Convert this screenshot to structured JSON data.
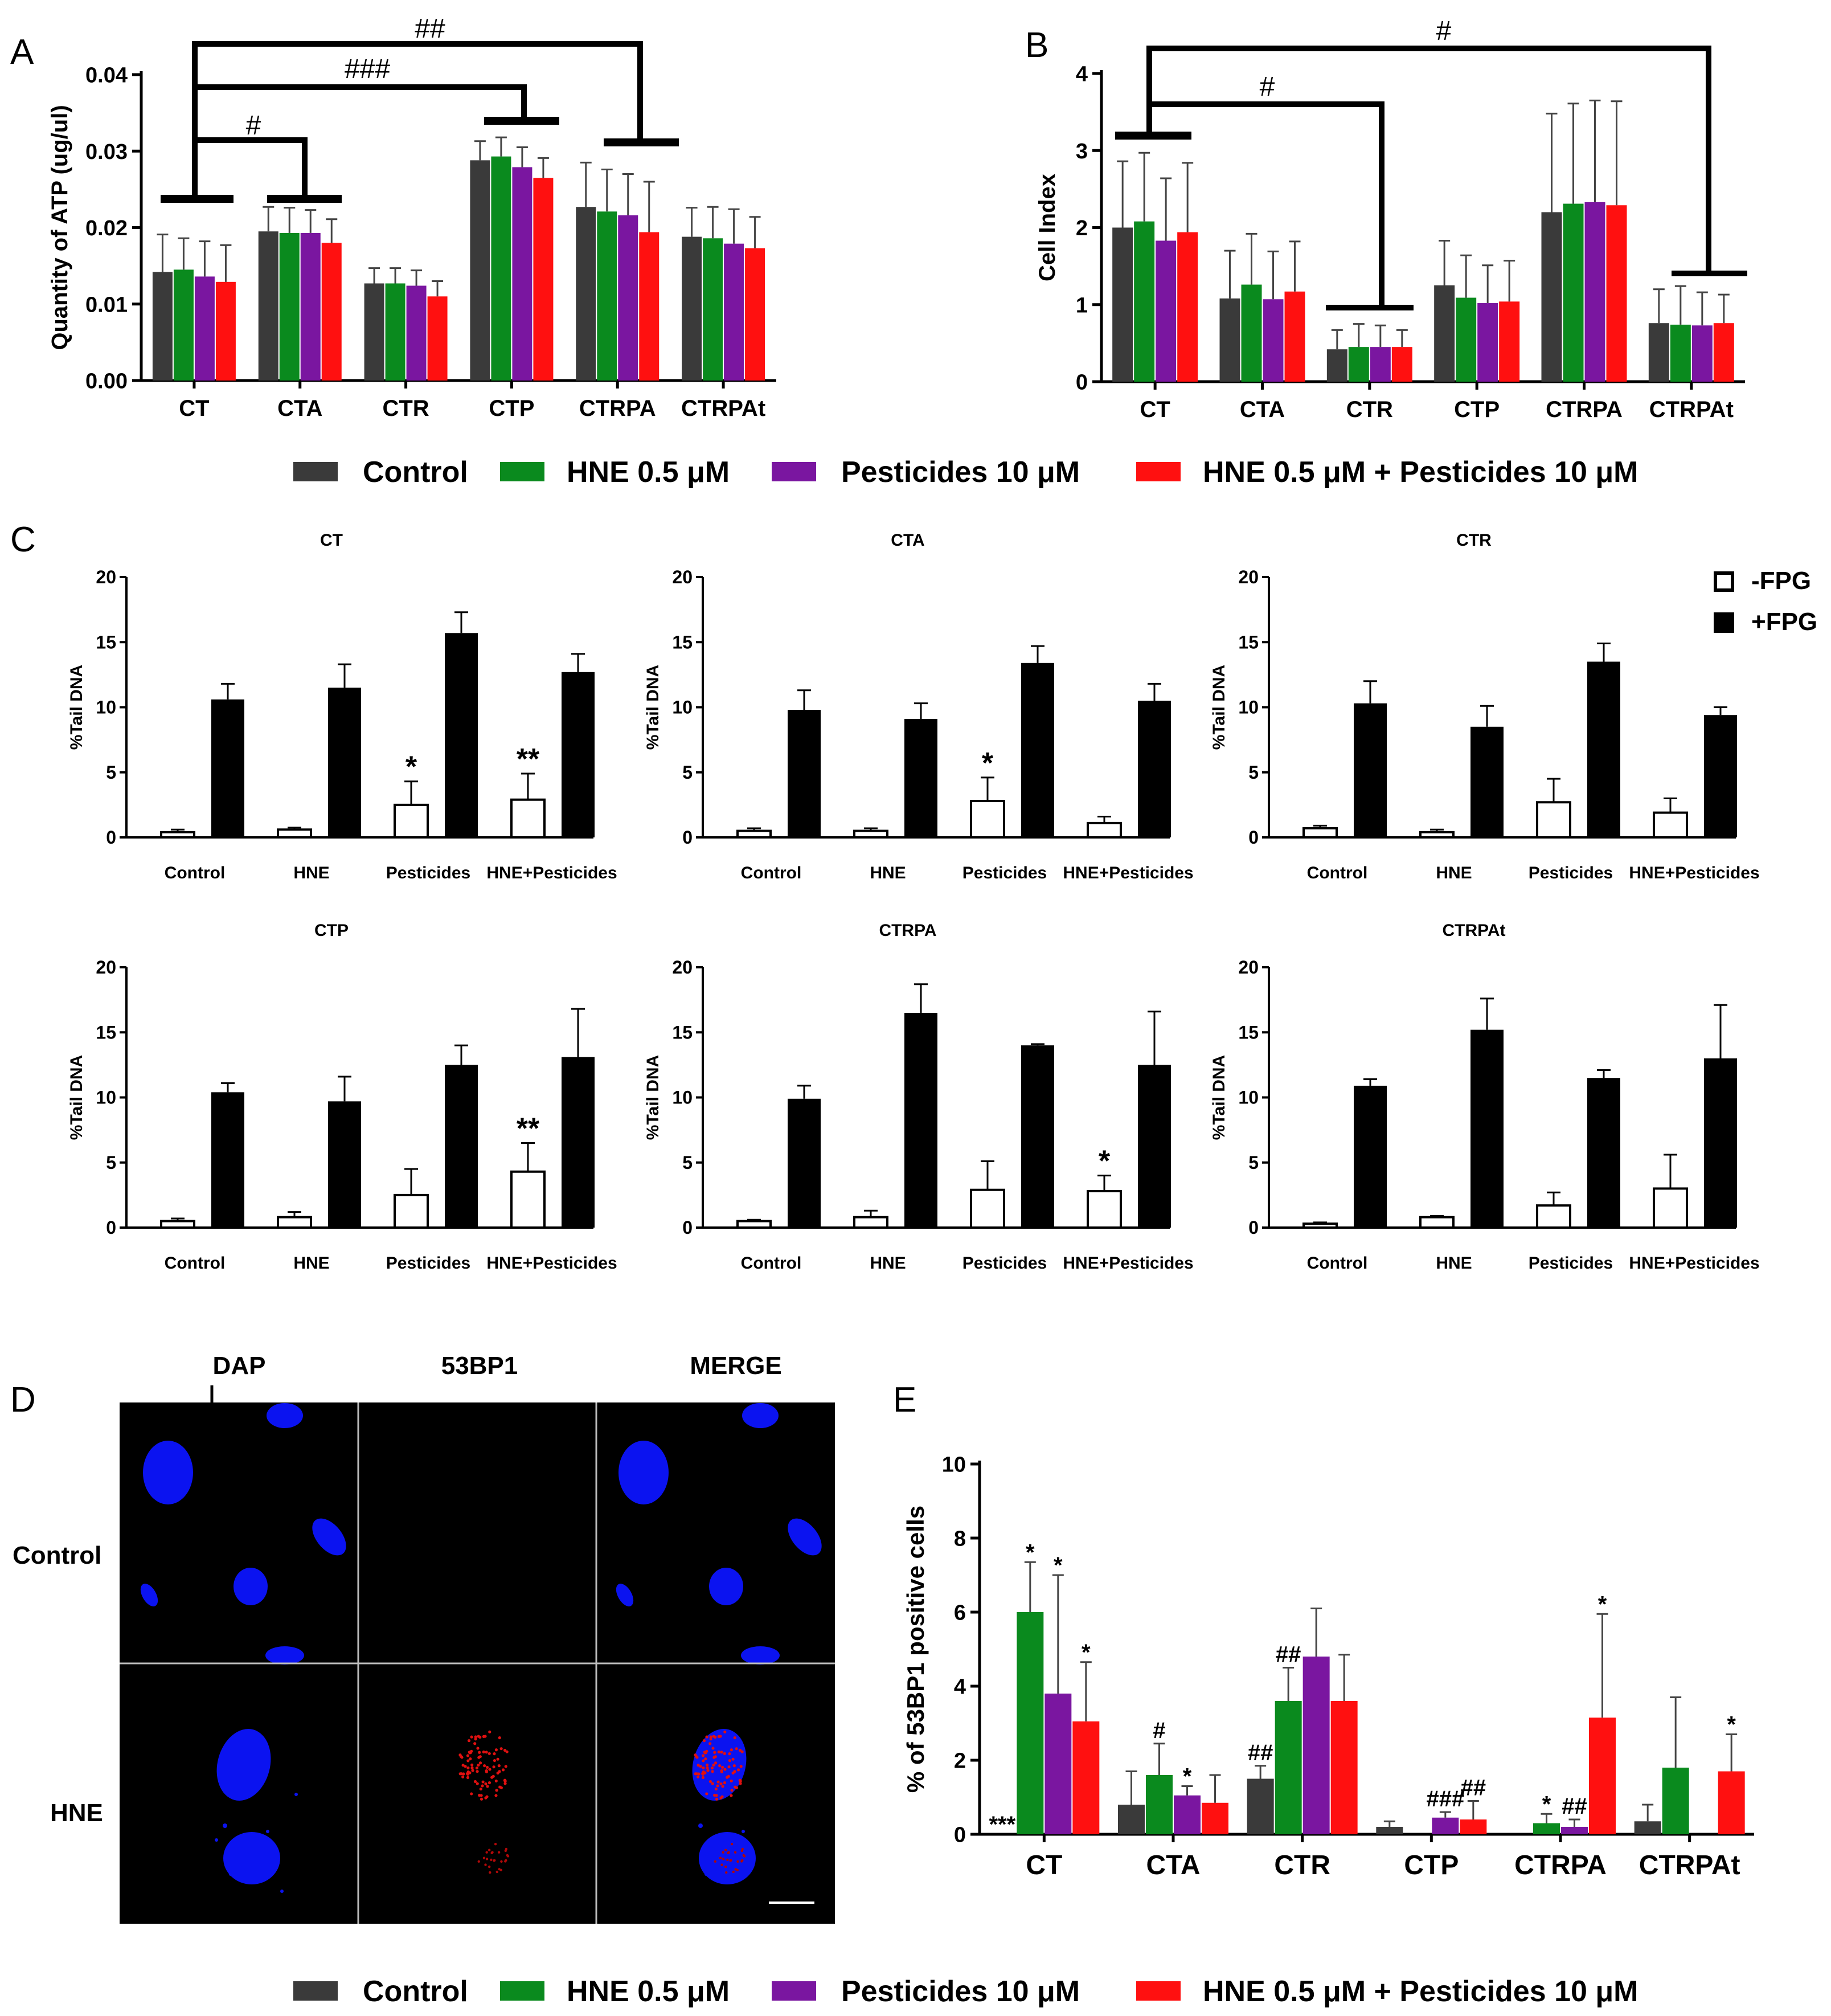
{
  "legend": {
    "items": [
      {
        "label": "Control",
        "color": "#3a3a3a"
      },
      {
        "label": "HNE 0.5 μM",
        "color": "#0a8a1e"
      },
      {
        "label": "Pesticides 10 μM",
        "color": "#7a16a0"
      },
      {
        "label": "HNE 0.5 μM + Pesticides 10 μM",
        "color": "#ff1010"
      }
    ]
  },
  "comet_legend": {
    "items": [
      {
        "label": "-FPG",
        "fill": "#ffffff"
      },
      {
        "label": "+FPG",
        "fill": "#000000"
      }
    ]
  },
  "chart_data": [
    {
      "panel": "A",
      "type": "bar",
      "ylabel": "Quantity of ATP (ug/ul)",
      "ylim": [
        0,
        0.04
      ],
      "yticks": [
        "0.00",
        "0.01",
        "0.02",
        "0.03",
        "0.04"
      ],
      "categories": [
        "CT",
        "CTA",
        "CTR",
        "CTP",
        "CTRPA",
        "CTRPAt"
      ],
      "series": [
        {
          "name": "Control",
          "values": [
            0.0142,
            0.0195,
            0.0127,
            0.0288,
            0.0227,
            0.0188
          ],
          "errors": [
            0.0049,
            0.0032,
            0.002,
            0.0025,
            0.0058,
            0.0038
          ]
        },
        {
          "name": "HNE 0.5 μM",
          "values": [
            0.0145,
            0.0193,
            0.0127,
            0.0293,
            0.0221,
            0.0186
          ],
          "errors": [
            0.0041,
            0.0033,
            0.002,
            0.0025,
            0.0055,
            0.0041
          ]
        },
        {
          "name": "Pesticides 10 μM",
          "values": [
            0.0136,
            0.0193,
            0.0124,
            0.0279,
            0.0216,
            0.0179
          ],
          "errors": [
            0.0046,
            0.003,
            0.002,
            0.0026,
            0.0054,
            0.0045
          ]
        },
        {
          "name": "HNE 0.5 μM + Pesticides 10 μM",
          "values": [
            0.0129,
            0.018,
            0.011,
            0.0265,
            0.0194,
            0.0173
          ],
          "errors": [
            0.0048,
            0.0031,
            0.002,
            0.0026,
            0.0066,
            0.0041
          ]
        }
      ],
      "annotations": [
        "#",
        "###",
        "##"
      ]
    },
    {
      "panel": "B",
      "type": "bar",
      "ylabel": "Cell Index",
      "ylim": [
        0,
        4
      ],
      "yticks": [
        "0",
        "1",
        "2",
        "3",
        "4"
      ],
      "categories": [
        "CT",
        "CTA",
        "CTR",
        "CTP",
        "CTRPA",
        "CTRPAt"
      ],
      "series": [
        {
          "name": "Control",
          "values": [
            2.0,
            1.08,
            0.42,
            1.25,
            2.2,
            0.76
          ],
          "errors": [
            0.86,
            0.62,
            0.25,
            0.58,
            1.28,
            0.44
          ]
        },
        {
          "name": "HNE 0.5 μM",
          "values": [
            2.08,
            1.26,
            0.45,
            1.09,
            2.31,
            0.74
          ],
          "errors": [
            0.89,
            0.66,
            0.3,
            0.55,
            1.3,
            0.5
          ]
        },
        {
          "name": "Pesticides 10 μM",
          "values": [
            1.83,
            1.07,
            0.45,
            1.02,
            2.33,
            0.73
          ],
          "errors": [
            0.81,
            0.62,
            0.28,
            0.49,
            1.32,
            0.43
          ]
        },
        {
          "name": "HNE 0.5 μM + Pesticides 10 μM",
          "values": [
            1.94,
            1.17,
            0.45,
            1.04,
            2.29,
            0.76
          ],
          "errors": [
            0.9,
            0.65,
            0.22,
            0.53,
            1.35,
            0.37
          ]
        }
      ],
      "annotations": [
        "#",
        "#"
      ]
    },
    {
      "panel": "C",
      "type": "bar",
      "ylabel": "%Tail DNA",
      "ylim": [
        0,
        20
      ],
      "yticks": [
        "0",
        "5",
        "10",
        "15",
        "20"
      ],
      "categories": [
        "Control",
        "HNE",
        "Pesticides",
        "HNE+Pesticides"
      ],
      "subplots": [
        {
          "title": "CT",
          "minus": [
            0.4,
            0.6,
            2.5,
            2.9
          ],
          "minus_err": [
            0.2,
            0.15,
            1.8,
            2.0
          ],
          "plus": [
            10.6,
            11.5,
            15.7,
            12.7
          ],
          "plus_err": [
            1.2,
            1.8,
            1.6,
            1.4
          ],
          "marks": [
            "",
            "",
            "*",
            "**"
          ]
        },
        {
          "title": "CTA",
          "minus": [
            0.5,
            0.5,
            2.8,
            1.1
          ],
          "minus_err": [
            0.2,
            0.2,
            1.8,
            0.5
          ],
          "plus": [
            9.8,
            9.1,
            13.4,
            10.5
          ],
          "plus_err": [
            1.5,
            1.2,
            1.3,
            1.3
          ],
          "marks": [
            "",
            "",
            "*",
            ""
          ]
        },
        {
          "title": "CTR",
          "minus": [
            0.7,
            0.4,
            2.7,
            1.9
          ],
          "minus_err": [
            0.2,
            0.2,
            1.8,
            1.1
          ],
          "plus": [
            10.3,
            8.5,
            13.5,
            9.4
          ],
          "plus_err": [
            1.7,
            1.6,
            1.4,
            0.6
          ],
          "marks": [
            "",
            "",
            "",
            ""
          ]
        },
        {
          "title": "CTP",
          "minus": [
            0.5,
            0.8,
            2.5,
            4.3
          ],
          "minus_err": [
            0.2,
            0.4,
            2.0,
            2.2
          ],
          "plus": [
            10.4,
            9.7,
            12.5,
            13.1
          ],
          "plus_err": [
            0.7,
            1.9,
            1.5,
            3.7
          ],
          "marks": [
            "",
            "",
            "",
            "**"
          ]
        },
        {
          "title": "CTRPA",
          "minus": [
            0.5,
            0.8,
            2.9,
            2.8
          ],
          "minus_err": [
            0.1,
            0.5,
            2.2,
            1.2
          ],
          "plus": [
            9.9,
            16.5,
            14.0,
            12.5
          ],
          "plus_err": [
            1.0,
            2.2,
            0.1,
            4.1
          ],
          "marks": [
            "",
            "",
            "",
            "*"
          ]
        },
        {
          "title": "CTRPAt",
          "minus": [
            0.3,
            0.8,
            1.7,
            3.0
          ],
          "minus_err": [
            0.1,
            0.1,
            1.0,
            2.6
          ],
          "plus": [
            10.9,
            15.2,
            11.5,
            13.0
          ],
          "plus_err": [
            0.5,
            2.4,
            0.6,
            4.1
          ],
          "marks": [
            "",
            "",
            "",
            ""
          ]
        }
      ]
    },
    {
      "panel": "E",
      "type": "bar",
      "ylabel": "% of 53BP1 positive cells",
      "ylim": [
        0,
        10
      ],
      "yticks": [
        "0",
        "2",
        "4",
        "6",
        "8",
        "10"
      ],
      "categories": [
        "CT",
        "CTA",
        "CTR",
        "CTP",
        "CTRPA",
        "CTRPAt"
      ],
      "series": [
        {
          "name": "Control",
          "values": [
            0.0,
            0.8,
            1.5,
            0.2,
            0.0,
            0.35
          ],
          "errors": [
            0,
            0.9,
            0.35,
            0.15,
            0,
            0.45
          ]
        },
        {
          "name": "HNE 0.5 μM",
          "values": [
            6.0,
            1.6,
            3.6,
            0.0,
            0.3,
            1.8
          ],
          "errors": [
            1.35,
            0.85,
            0.9,
            0,
            0.25,
            1.9
          ]
        },
        {
          "name": "Pesticides 10 μM",
          "values": [
            3.8,
            1.05,
            4.8,
            0.45,
            0.2,
            0.0
          ],
          "errors": [
            3.2,
            0.25,
            1.3,
            0.15,
            0.2,
            0
          ]
        },
        {
          "name": "HNE 0.5 μM + Pesticides 10 μM",
          "values": [
            3.05,
            0.85,
            3.6,
            0.4,
            3.15,
            1.7
          ],
          "errors": [
            1.6,
            0.75,
            1.25,
            0.5,
            2.8,
            1.0
          ]
        }
      ],
      "marks": [
        [
          "***",
          "*",
          "*",
          "*"
        ],
        [
          "",
          "#",
          "*",
          ""
        ],
        [
          "##",
          "##",
          "",
          ""
        ],
        [
          "",
          "",
          "###",
          "##"
        ],
        [
          "",
          "*",
          "##",
          "*"
        ],
        [
          "",
          "",
          "",
          "*"
        ]
      ]
    }
  ],
  "panel_labels": [
    "A",
    "B",
    "C",
    "D",
    "E"
  ],
  "panelD": {
    "col_labels": [
      "DAP",
      "53BP1",
      "MERGE"
    ],
    "row_labels": [
      "Control",
      "HNE"
    ]
  }
}
